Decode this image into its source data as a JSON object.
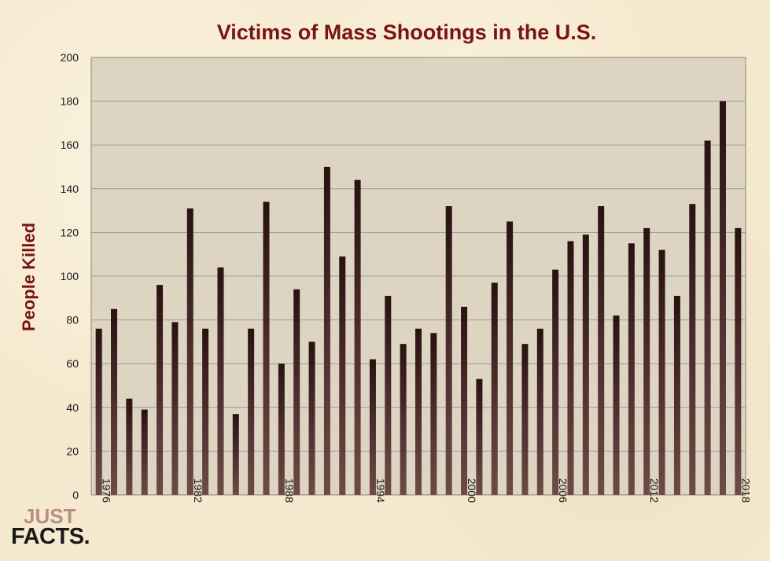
{
  "chart_data": {
    "type": "bar",
    "title": "Victims of Mass Shootings in the U.S.",
    "ylabel": "People Killed",
    "xlabel": "",
    "ylim": [
      0,
      200
    ],
    "yticks": [
      0,
      20,
      40,
      60,
      80,
      100,
      120,
      140,
      160,
      180,
      200
    ],
    "xtick_labels": [
      "1976",
      "1982",
      "1988",
      "1994",
      "2000",
      "2006",
      "2012",
      "2018"
    ],
    "grid": true,
    "legend": "none",
    "colors": {
      "bar_top": "#2a1210",
      "bar_bottom": "#6e4a48",
      "plot_bg": "#ddd5c2",
      "title": "#7a1414",
      "grid": "#9a9a9a"
    },
    "categories": [
      1976,
      1977,
      1978,
      1979,
      1980,
      1981,
      1982,
      1983,
      1984,
      1985,
      1986,
      1987,
      1988,
      1989,
      1990,
      1991,
      1992,
      1993,
      1994,
      1995,
      1996,
      1997,
      1998,
      1999,
      2000,
      2001,
      2002,
      2003,
      2004,
      2005,
      2006,
      2007,
      2008,
      2009,
      2010,
      2011,
      2012,
      2013,
      2014,
      2015,
      2016,
      2017,
      2018
    ],
    "values": [
      76,
      85,
      44,
      39,
      96,
      79,
      131,
      76,
      104,
      37,
      76,
      134,
      60,
      94,
      70,
      150,
      109,
      144,
      62,
      91,
      69,
      76,
      74,
      132,
      86,
      53,
      97,
      125,
      69,
      76,
      103,
      116,
      119,
      132,
      82,
      115,
      122,
      112,
      91,
      133,
      162,
      180,
      122
    ]
  },
  "logo": {
    "line1": "JUST",
    "line2": "FACTS."
  }
}
